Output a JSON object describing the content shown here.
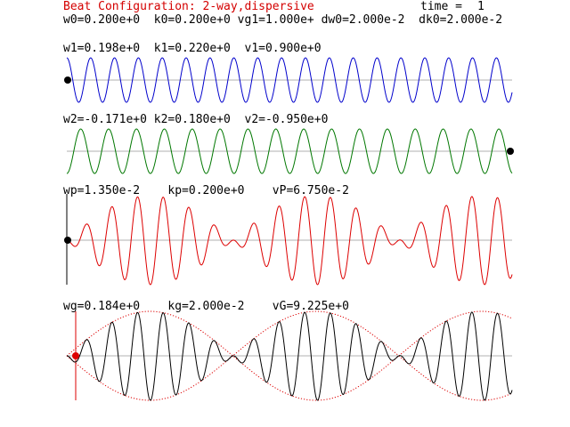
{
  "header": {
    "title": "Beat Configuration: 2-way,dispersive",
    "time_label": "time =",
    "time_value": "1",
    "params": "w0=0.200e+0  k0=0.200e+0 vg1=1.000e+ dw0=2.000e-2  dk0=2.000e-2"
  },
  "panels": [
    {
      "label": "w1=0.198e+0  k1=0.220e+0  v1=0.900e+0",
      "color": "#0000cc"
    },
    {
      "label": "w2=-0.171e+0 k2=0.180e+0  v2=-0.950e+0",
      "color": "#007700"
    },
    {
      "label": "wp=1.350e-2    kp=0.200e+0    vP=6.750e-2",
      "color": "#dd0000"
    },
    {
      "label": "wg=0.184e+0    kg=2.000e-2    vG=9.225e+0",
      "color": "#000000",
      "envelope_color": "#dd0000"
    }
  ],
  "markers": {
    "marker_color": "#000000",
    "probe_color": "#dd0000"
  }
}
